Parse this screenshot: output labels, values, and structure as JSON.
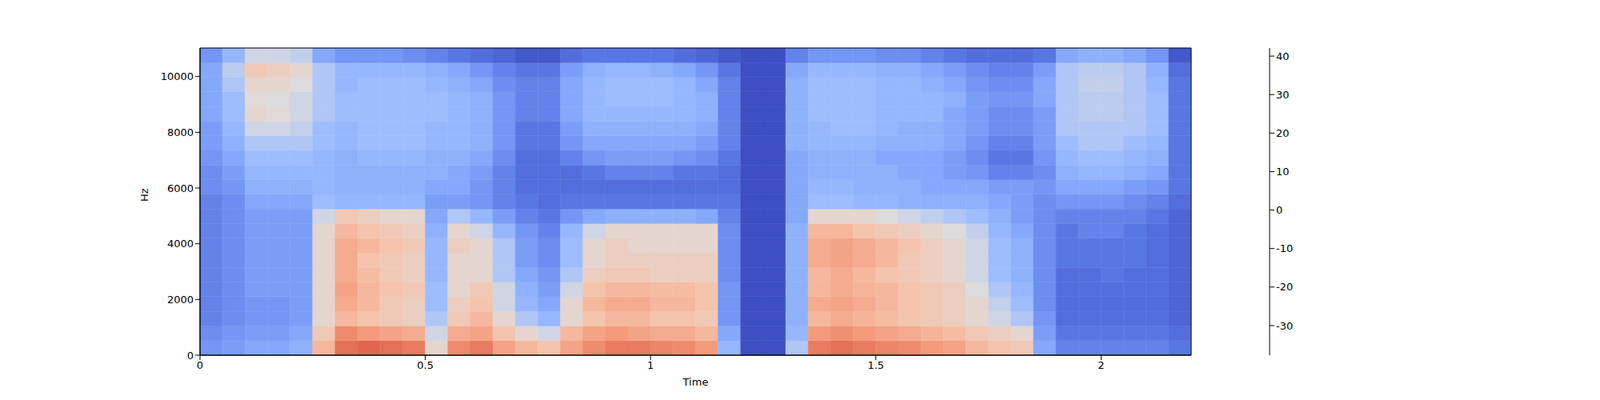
{
  "chart_data": {
    "type": "heatmap",
    "xlabel": "Time",
    "ylabel": "Hz",
    "xlim": [
      0,
      2.2
    ],
    "xticks": [
      0,
      0.5,
      1,
      1.5,
      2
    ],
    "ylim": [
      0,
      11025
    ],
    "yticks": [
      0,
      2000,
      4000,
      6000,
      8000,
      10000
    ],
    "x_edges": [
      0,
      0.05,
      0.1,
      0.15,
      0.2,
      0.25,
      0.3,
      0.35,
      0.4,
      0.45,
      0.5,
      0.55,
      0.6,
      0.65,
      0.7,
      0.75,
      0.8,
      0.85,
      0.9,
      0.95,
      1.0,
      1.05,
      1.1,
      1.15,
      1.2,
      1.25,
      1.3,
      1.35,
      1.4,
      1.45,
      1.5,
      1.55,
      1.6,
      1.65,
      1.7,
      1.75,
      1.8,
      1.85,
      1.9,
      1.95,
      2.0,
      2.05,
      2.1,
      2.15,
      2.2
    ],
    "y_edges": [
      0,
      525,
      1050,
      1575,
      2100,
      2625,
      3150,
      3675,
      4200,
      4725,
      5250,
      5775,
      6300,
      6825,
      7350,
      7875,
      8400,
      8925,
      9450,
      9975,
      10500,
      11025
    ],
    "cells": [
      [
        -20,
        -18,
        -15,
        -15,
        -12,
        15,
        30,
        32,
        30,
        28,
        5,
        25,
        28,
        20,
        15,
        12,
        20,
        25,
        28,
        28,
        26,
        25,
        22,
        -10,
        -37,
        -37,
        -5,
        28,
        30,
        28,
        26,
        25,
        22,
        20,
        15,
        12,
        10,
        -15,
        -25,
        -25,
        -25,
        -25,
        -25,
        -28
      ],
      [
        -22,
        -20,
        -18,
        -18,
        -15,
        10,
        25,
        22,
        20,
        18,
        0,
        18,
        20,
        12,
        5,
        0,
        15,
        20,
        22,
        20,
        18,
        18,
        15,
        -15,
        -37,
        -37,
        -10,
        22,
        24,
        22,
        20,
        18,
        16,
        14,
        10,
        8,
        5,
        -18,
        -28,
        -28,
        -28,
        -28,
        -28,
        -30
      ],
      [
        -25,
        -22,
        -20,
        -20,
        -18,
        5,
        15,
        12,
        10,
        8,
        -5,
        10,
        15,
        5,
        -5,
        -10,
        5,
        12,
        15,
        15,
        12,
        12,
        10,
        -20,
        -37,
        -37,
        -12,
        15,
        18,
        16,
        14,
        12,
        10,
        8,
        5,
        0,
        -5,
        -20,
        -30,
        -30,
        -30,
        -30,
        -30,
        -32
      ],
      [
        -25,
        -22,
        -20,
        -20,
        -18,
        5,
        18,
        15,
        10,
        8,
        -8,
        8,
        12,
        0,
        -10,
        -15,
        5,
        15,
        18,
        18,
        15,
        15,
        12,
        -20,
        -37,
        -37,
        -12,
        18,
        20,
        18,
        15,
        12,
        10,
        8,
        5,
        -2,
        -8,
        -22,
        -30,
        -30,
        -30,
        -30,
        -30,
        -32
      ],
      [
        -25,
        -22,
        -18,
        -18,
        -18,
        5,
        20,
        15,
        12,
        10,
        -8,
        5,
        10,
        0,
        -12,
        -18,
        0,
        12,
        15,
        15,
        14,
        14,
        12,
        -20,
        -37,
        -37,
        -12,
        15,
        18,
        16,
        15,
        12,
        10,
        8,
        2,
        -5,
        -10,
        -22,
        -30,
        -30,
        -30,
        -30,
        -30,
        -32
      ],
      [
        -25,
        -22,
        -18,
        -18,
        -18,
        5,
        18,
        14,
        10,
        8,
        -10,
        5,
        5,
        -5,
        -15,
        -20,
        -5,
        8,
        10,
        10,
        8,
        8,
        8,
        -22,
        -37,
        -37,
        -12,
        15,
        18,
        15,
        12,
        10,
        8,
        5,
        0,
        -8,
        -12,
        -22,
        -30,
        -30,
        -28,
        -30,
        -30,
        -32
      ],
      [
        -25,
        -22,
        -18,
        -18,
        -18,
        5,
        18,
        12,
        10,
        8,
        -10,
        5,
        5,
        -5,
        -18,
        -22,
        -8,
        5,
        8,
        8,
        8,
        8,
        8,
        -22,
        -37,
        -37,
        -12,
        18,
        20,
        18,
        15,
        10,
        8,
        5,
        0,
        -8,
        -12,
        -22,
        -28,
        -28,
        -28,
        -28,
        -30,
        -32
      ],
      [
        -25,
        -22,
        -18,
        -18,
        -18,
        5,
        18,
        15,
        12,
        10,
        -10,
        8,
        5,
        -5,
        -18,
        -22,
        -8,
        5,
        8,
        5,
        5,
        5,
        5,
        -22,
        -37,
        -37,
        -12,
        18,
        20,
        18,
        15,
        12,
        8,
        5,
        0,
        -8,
        -12,
        -22,
        -28,
        -28,
        -28,
        -28,
        -30,
        -32
      ],
      [
        -25,
        -22,
        -18,
        -18,
        -18,
        5,
        15,
        12,
        10,
        8,
        -12,
        5,
        0,
        -10,
        -20,
        -25,
        -10,
        0,
        5,
        5,
        5,
        5,
        5,
        -22,
        -37,
        -37,
        -12,
        15,
        15,
        12,
        10,
        8,
        5,
        2,
        -2,
        -10,
        -15,
        -22,
        -28,
        -25,
        -25,
        -28,
        -30,
        -32
      ],
      [
        -25,
        -22,
        -18,
        -18,
        -18,
        0,
        10,
        8,
        5,
        5,
        -15,
        -5,
        -10,
        -18,
        -25,
        -28,
        -20,
        -15,
        -12,
        -12,
        -12,
        -12,
        -15,
        -25,
        -37,
        -37,
        -15,
        5,
        5,
        5,
        2,
        0,
        -2,
        -5,
        -8,
        -12,
        -18,
        -22,
        -25,
        -25,
        -25,
        -25,
        -28,
        -32
      ],
      [
        -25,
        -22,
        -15,
        -15,
        -15,
        -8,
        -10,
        -10,
        -10,
        -10,
        -18,
        -18,
        -20,
        -25,
        -28,
        -30,
        -28,
        -28,
        -28,
        -28,
        -28,
        -28,
        -28,
        -28,
        -37,
        -37,
        -15,
        -8,
        -8,
        -10,
        -10,
        -12,
        -12,
        -12,
        -12,
        -15,
        -18,
        -22,
        -20,
        -20,
        -20,
        -22,
        -25,
        -30
      ],
      [
        -22,
        -20,
        -12,
        -12,
        -12,
        -10,
        -12,
        -12,
        -12,
        -12,
        -15,
        -15,
        -20,
        -25,
        -30,
        -30,
        -30,
        -30,
        -30,
        -30,
        -30,
        -30,
        -30,
        -30,
        -37,
        -37,
        -15,
        -10,
        -10,
        -12,
        -12,
        -12,
        -15,
        -15,
        -15,
        -18,
        -18,
        -20,
        -15,
        -15,
        -15,
        -18,
        -20,
        -28
      ],
      [
        -22,
        -18,
        -10,
        -10,
        -10,
        -10,
        -12,
        -12,
        -12,
        -12,
        -12,
        -15,
        -18,
        -25,
        -30,
        -30,
        -30,
        -28,
        -25,
        -25,
        -25,
        -28,
        -28,
        -30,
        -37,
        -37,
        -15,
        -12,
        -12,
        -12,
        -12,
        -15,
        -15,
        -18,
        -20,
        -25,
        -25,
        -22,
        -12,
        -10,
        -10,
        -12,
        -15,
        -28
      ],
      [
        -20,
        -15,
        -8,
        -8,
        -8,
        -10,
        -12,
        -10,
        -10,
        -10,
        -12,
        -12,
        -15,
        -22,
        -30,
        -30,
        -25,
        -20,
        -18,
        -18,
        -18,
        -20,
        -22,
        -28,
        -37,
        -37,
        -15,
        -12,
        -12,
        -12,
        -15,
        -15,
        -15,
        -18,
        -22,
        -28,
        -28,
        -20,
        -10,
        -8,
        -8,
        -10,
        -12,
        -28
      ],
      [
        -18,
        -12,
        -5,
        -5,
        -5,
        -8,
        -10,
        -8,
        -8,
        -8,
        -10,
        -10,
        -12,
        -20,
        -28,
        -28,
        -20,
        -15,
        -15,
        -15,
        -15,
        -15,
        -18,
        -25,
        -37,
        -37,
        -12,
        -10,
        -10,
        -10,
        -12,
        -12,
        -12,
        -15,
        -20,
        -25,
        -25,
        -18,
        -8,
        -5,
        -5,
        -8,
        -10,
        -28
      ],
      [
        -18,
        -10,
        0,
        0,
        -2,
        -8,
        -10,
        -8,
        -8,
        -8,
        -10,
        -10,
        -12,
        -20,
        -28,
        -28,
        -18,
        -12,
        -12,
        -12,
        -12,
        -12,
        -15,
        -25,
        -37,
        -37,
        -12,
        -10,
        -8,
        -8,
        -10,
        -12,
        -12,
        -15,
        -18,
        -22,
        -22,
        -18,
        -5,
        -5,
        -5,
        -5,
        -8,
        -28
      ],
      [
        -15,
        -8,
        5,
        3,
        0,
        -5,
        -8,
        -8,
        -8,
        -8,
        -8,
        -10,
        -12,
        -20,
        -25,
        -25,
        -15,
        -10,
        -10,
        -10,
        -10,
        -10,
        -12,
        -25,
        -37,
        -37,
        -12,
        -8,
        -8,
        -8,
        -10,
        -10,
        -10,
        -15,
        -18,
        -22,
        -22,
        -18,
        -5,
        -3,
        -3,
        -5,
        -8,
        -28
      ],
      [
        -15,
        -8,
        3,
        2,
        0,
        -5,
        -8,
        -8,
        -8,
        -8,
        -8,
        -10,
        -12,
        -20,
        -25,
        -25,
        -15,
        -10,
        -8,
        -8,
        -8,
        -10,
        -12,
        -25,
        -37,
        -37,
        -12,
        -8,
        -8,
        -8,
        -10,
        -10,
        -10,
        -12,
        -18,
        -20,
        -20,
        -15,
        -5,
        -3,
        -3,
        -5,
        -8,
        -28
      ],
      [
        -15,
        -5,
        5,
        5,
        2,
        -5,
        -10,
        -8,
        -8,
        -8,
        -10,
        -12,
        -15,
        -22,
        -25,
        -25,
        -15,
        -10,
        -8,
        -8,
        -8,
        -10,
        -15,
        -25,
        -37,
        -37,
        -12,
        -8,
        -8,
        -8,
        -10,
        -10,
        -12,
        -15,
        -20,
        -22,
        -22,
        -15,
        -5,
        -2,
        -2,
        -5,
        -10,
        -28
      ],
      [
        -15,
        -3,
        10,
        8,
        5,
        -5,
        -10,
        -10,
        -10,
        -10,
        -12,
        -15,
        -20,
        -25,
        -28,
        -28,
        -18,
        -12,
        -10,
        -10,
        -12,
        -15,
        -20,
        -28,
        -37,
        -37,
        -15,
        -10,
        -10,
        -10,
        -12,
        -12,
        -15,
        -18,
        -22,
        -25,
        -25,
        -18,
        -5,
        -3,
        -3,
        -5,
        -12,
        -30
      ],
      [
        -20,
        -10,
        0,
        0,
        -2,
        -15,
        -20,
        -20,
        -20,
        -22,
        -25,
        -28,
        -30,
        -32,
        -35,
        -35,
        -30,
        -28,
        -28,
        -28,
        -28,
        -30,
        -32,
        -35,
        -37,
        -37,
        -25,
        -20,
        -20,
        -20,
        -22,
        -22,
        -25,
        -28,
        -30,
        -30,
        -30,
        -28,
        -15,
        -12,
        -12,
        -15,
        -20,
        -35
      ]
    ],
    "colorbar": {
      "range": [
        -37.7,
        42.1
      ],
      "ticks": [
        -30,
        -20,
        -10,
        0,
        10,
        20,
        30,
        40
      ]
    }
  }
}
